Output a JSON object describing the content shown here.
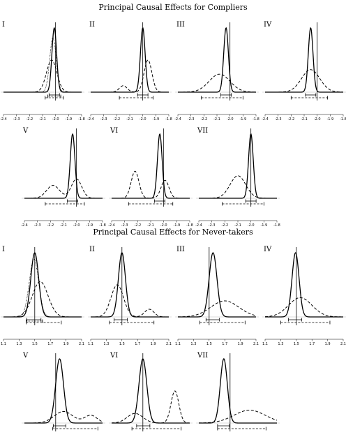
{
  "sections": [
    {
      "title": "Principal Causal Effects for Compliers",
      "panels": [
        "I",
        "II",
        "III",
        "IV",
        "V",
        "VI",
        "VII"
      ]
    },
    {
      "title": "Principal Causal Effects for Never-takers",
      "panels": [
        "I",
        "II",
        "III",
        "IV",
        "V",
        "VI",
        "VII"
      ]
    }
  ],
  "chart_data": [
    {
      "type": "line",
      "title": "Principal Causal Effects for Compliers",
      "xlim": [
        -2.4,
        -1.8
      ],
      "xticks": [
        "-2.4",
        "-2.3",
        "-2.2",
        "-2.1",
        "-2.0",
        "-1.9",
        "-1.8"
      ],
      "ylabel": "",
      "xlabel": "",
      "panels": [
        {
          "label": "I",
          "true": -2.0,
          "solid": [
            {
              "mu": -2.01,
              "sd": 0.018,
              "w": 1
            }
          ],
          "dashed": [
            {
              "mu": -2.03,
              "sd": 0.04,
              "w": 0.5
            }
          ],
          "dotted": [
            {
              "mu": -2.02,
              "sd": 0.025,
              "w": 0.85
            }
          ],
          "interval_solid": [
            -2.05,
            -1.97
          ],
          "interval_dashed": [
            -2.08,
            -1.94
          ],
          "interval_dotted": [
            -2.06,
            -1.96
          ]
        },
        {
          "label": "II",
          "true": -2.0,
          "solid": [
            {
              "mu": -2.0,
              "sd": 0.018,
              "w": 1
            }
          ],
          "dashed": [
            {
              "mu": -1.96,
              "sd": 0.03,
              "w": 0.5
            },
            {
              "mu": -2.15,
              "sd": 0.03,
              "w": 0.1
            }
          ],
          "interval_solid": [
            -2.04,
            -1.96
          ],
          "interval_dashed": [
            -2.18,
            -1.92
          ]
        },
        {
          "label": "III",
          "true": -2.0,
          "solid": [
            {
              "mu": -2.03,
              "sd": 0.018,
              "w": 1
            }
          ],
          "dashed": [
            {
              "mu": -2.08,
              "sd": 0.08,
              "w": 0.28
            }
          ],
          "interval_solid": [
            -2.07,
            -1.99
          ],
          "interval_dashed": [
            -2.22,
            -1.9
          ]
        },
        {
          "label": "IV",
          "true": -2.0,
          "solid": [
            {
              "mu": -2.05,
              "sd": 0.018,
              "w": 1
            }
          ],
          "dashed": [
            {
              "mu": -2.05,
              "sd": 0.07,
              "w": 0.35
            }
          ],
          "interval_solid": [
            -2.09,
            -2.01
          ],
          "interval_dashed": [
            -2.2,
            -1.92
          ]
        },
        {
          "label": "V",
          "true": -2.0,
          "solid": [
            {
              "mu": -2.03,
              "sd": 0.018,
              "w": 1
            }
          ],
          "dashed": [
            {
              "mu": -2.0,
              "sd": 0.04,
              "w": 0.3
            },
            {
              "mu": -2.18,
              "sd": 0.05,
              "w": 0.2
            }
          ],
          "interval_solid": [
            -2.07,
            -1.99
          ],
          "interval_dashed": [
            -2.24,
            -1.94
          ]
        },
        {
          "label": "VI",
          "true": -2.0,
          "solid": [
            {
              "mu": -2.03,
              "sd": 0.018,
              "w": 1
            }
          ],
          "dashed": [
            {
              "mu": -2.22,
              "sd": 0.03,
              "w": 0.42
            },
            {
              "mu": -1.99,
              "sd": 0.03,
              "w": 0.28
            }
          ],
          "interval_solid": [
            -2.07,
            -1.99
          ],
          "interval_dashed": [
            -2.27,
            -1.93
          ]
        },
        {
          "label": "VII",
          "true": -2.0,
          "solid": [
            {
              "mu": -2.0,
              "sd": 0.018,
              "w": 1
            }
          ],
          "dashed": [
            {
              "mu": -2.1,
              "sd": 0.06,
              "w": 0.35
            }
          ],
          "interval_solid": [
            -2.04,
            -1.96
          ],
          "interval_dashed": [
            -2.22,
            -1.9
          ]
        }
      ]
    },
    {
      "type": "line",
      "title": "Principal Causal Effects for Never-takers",
      "xlim": [
        1.1,
        2.1
      ],
      "xticks": [
        "1.1",
        "1.3",
        "1.5",
        "1.7",
        "1.9",
        "2.1"
      ],
      "ylabel": "",
      "xlabel": "",
      "panels": [
        {
          "label": "I",
          "true": 1.5,
          "solid": [
            {
              "mu": 1.5,
              "sd": 0.05,
              "w": 1
            }
          ],
          "dashed": [
            {
              "mu": 1.57,
              "sd": 0.1,
              "w": 0.55
            }
          ],
          "dotted": [
            {
              "mu": 1.49,
              "sd": 0.06,
              "w": 0.9
            }
          ],
          "interval_solid": [
            1.4,
            1.58
          ],
          "interval_dashed": [
            1.39,
            1.84
          ],
          "interval_dotted": [
            1.39,
            1.6
          ]
        },
        {
          "label": "II",
          "true": 1.5,
          "solid": [
            {
              "mu": 1.5,
              "sd": 0.045,
              "w": 1
            }
          ],
          "dashed": [
            {
              "mu": 1.44,
              "sd": 0.08,
              "w": 0.5
            },
            {
              "mu": 1.85,
              "sd": 0.06,
              "w": 0.12
            }
          ],
          "interval_solid": [
            1.4,
            1.57
          ],
          "interval_dashed": [
            1.34,
            1.91
          ]
        },
        {
          "label": "III",
          "true": 1.5,
          "solid": [
            {
              "mu": 1.55,
              "sd": 0.05,
              "w": 1
            }
          ],
          "dashed": [
            {
              "mu": 1.7,
              "sd": 0.18,
              "w": 0.25
            }
          ],
          "interval_solid": [
            1.46,
            1.63
          ],
          "interval_dashed": [
            1.38,
            1.96
          ]
        },
        {
          "label": "IV",
          "true": 1.5,
          "solid": [
            {
              "mu": 1.49,
              "sd": 0.045,
              "w": 1
            }
          ],
          "dashed": [
            {
              "mu": 1.55,
              "sd": 0.15,
              "w": 0.3
            }
          ],
          "interval_solid": [
            1.4,
            1.57
          ],
          "interval_dashed": [
            1.3,
            1.93
          ]
        },
        {
          "label": "V",
          "true": 1.5,
          "solid": [
            {
              "mu": 1.55,
              "sd": 0.05,
              "w": 1
            }
          ],
          "dashed": [
            {
              "mu": 1.6,
              "sd": 0.12,
              "w": 0.18
            },
            {
              "mu": 1.95,
              "sd": 0.08,
              "w": 0.12
            }
          ],
          "interval_solid": [
            1.47,
            1.63
          ],
          "interval_dashed": [
            1.46,
            2.04
          ]
        },
        {
          "label": "VI",
          "true": 1.5,
          "solid": [
            {
              "mu": 1.5,
              "sd": 0.05,
              "w": 1
            }
          ],
          "dashed": [
            {
              "mu": 1.91,
              "sd": 0.05,
              "w": 0.5
            },
            {
              "mu": 1.4,
              "sd": 0.1,
              "w": 0.15
            }
          ],
          "interval_solid": [
            1.42,
            1.59
          ],
          "interval_dashed": [
            1.36,
            1.99
          ]
        },
        {
          "label": "VII",
          "true": 1.5,
          "solid": [
            {
              "mu": 1.42,
              "sd": 0.045,
              "w": 1
            }
          ],
          "dashed": [
            {
              "mu": 1.75,
              "sd": 0.2,
              "w": 0.2
            }
          ],
          "interval_solid": [
            1.34,
            1.49
          ],
          "interval_dashed": [
            1.34,
            1.96
          ]
        }
      ]
    }
  ]
}
